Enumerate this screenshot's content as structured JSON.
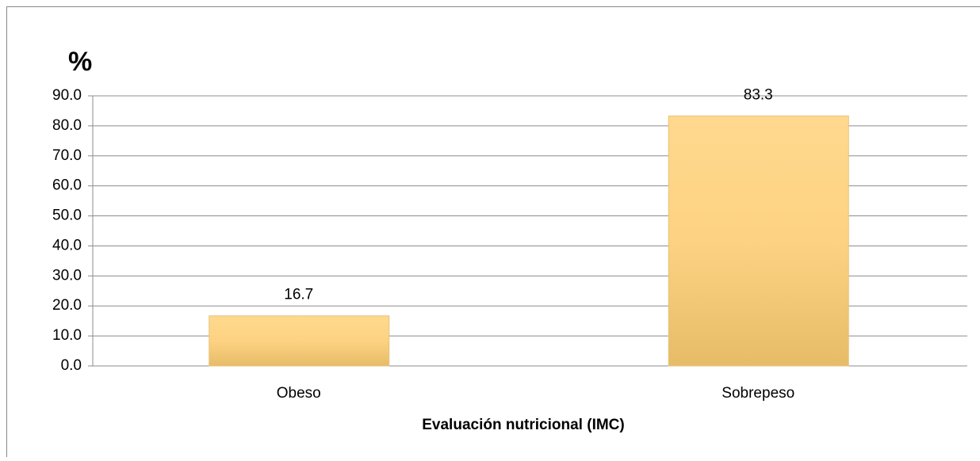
{
  "chart_data": {
    "type": "bar",
    "y_label": "%",
    "x_label": "Evaluación nutricional (IMC)",
    "categories": [
      "Obeso",
      "Sobrepeso"
    ],
    "values": [
      16.7,
      83.3
    ],
    "color": "#fdd282",
    "ylim": [
      0,
      90
    ],
    "yticks": [
      {
        "value": 0,
        "label": "0.0"
      },
      {
        "value": 10,
        "label": "10.0"
      },
      {
        "value": 20,
        "label": "20.0"
      },
      {
        "value": 30,
        "label": "30.0"
      },
      {
        "value": 40,
        "label": "40.0"
      },
      {
        "value": 50,
        "label": "50.0"
      },
      {
        "value": 60,
        "label": "60.0"
      },
      {
        "value": 70,
        "label": "70.0"
      },
      {
        "value": 80,
        "label": "80.0"
      },
      {
        "value": 90,
        "label": "90.0"
      }
    ],
    "grid": true
  }
}
